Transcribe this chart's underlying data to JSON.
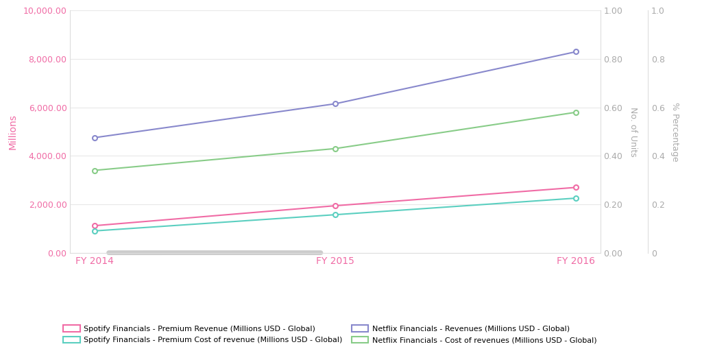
{
  "years": [
    "FY 2014",
    "FY 2015",
    "FY 2016"
  ],
  "x_positions": [
    0,
    1,
    2
  ],
  "spotify_revenue": [
    1116.0,
    1940.0,
    2697.0
  ],
  "spotify_cost": [
    900.0,
    1570.0,
    2254.0
  ],
  "netflix_revenue": [
    4750.0,
    6150.0,
    8300.0
  ],
  "netflix_cost": [
    3400.0,
    4300.0,
    5800.0
  ],
  "colors": {
    "spotify_revenue": "#f06ba5",
    "spotify_cost": "#5bcfc0",
    "netflix_revenue": "#8888cc",
    "netflix_cost": "#88cc88"
  },
  "ylim": [
    0,
    10000
  ],
  "yticks_left": [
    0,
    2000,
    4000,
    6000,
    8000,
    10000
  ],
  "ytick_labels_left": [
    "0.00",
    "2,000.00",
    "4,000.00",
    "6,000.00",
    "8,000.00",
    "10,000.00"
  ],
  "right_axis_units_ticks": [
    0.0,
    0.2,
    0.4,
    0.6,
    0.8,
    1.0
  ],
  "right_axis_percent_ticks": [
    0.0,
    0.2,
    0.4,
    0.6,
    0.8,
    1.0
  ],
  "right_axis_percent_labels": [
    "0",
    "0.2",
    "0.4",
    "0.6",
    "0.8",
    "1.0"
  ],
  "ylabel_left": "Millions",
  "ylabel_right1": "No. of Units",
  "ylabel_right2": "% Percentage",
  "xlabel_color": "#f06ba5",
  "ylabel_color": "#f06ba5",
  "axis_color": "#aaaaaa",
  "background_color": "#ffffff",
  "grid_color": "#e8e8e8",
  "legend": [
    {
      "label": "Spotify Financials - Premium Revenue (Millions USD - Global)",
      "color": "#f06ba5"
    },
    {
      "label": "Spotify Financials - Premium Cost of revenue (Millions USD - Global)",
      "color": "#5bcfc0"
    },
    {
      "label": "Netflix Financials - Revenues (Millions USD - Global)",
      "color": "#8888cc"
    },
    {
      "label": "Netflix Financials - Cost of revenues (Millions USD - Global)",
      "color": "#88cc88"
    }
  ]
}
